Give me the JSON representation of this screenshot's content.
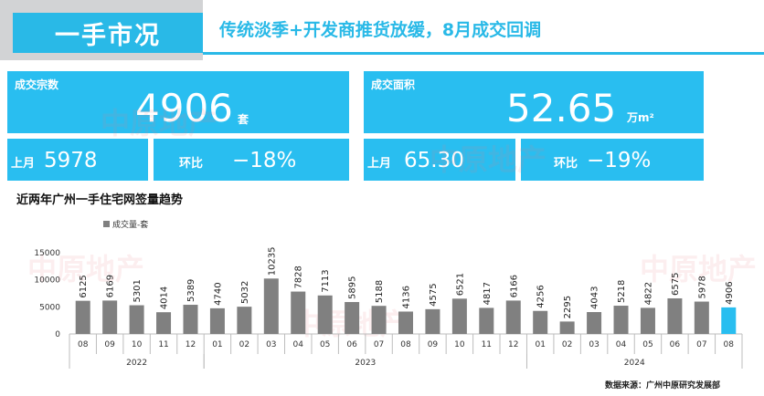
{
  "header": {
    "tab_label": "一手市况",
    "title": "传统淡季+开发商推货放缓，8月成交回调"
  },
  "kpi_units": {
    "label": "成交宗数",
    "value": "4906",
    "unit": "套",
    "last_label": "上月",
    "last_value": "5978",
    "mom_label": "环比",
    "mom_value": "−18%"
  },
  "kpi_area": {
    "label": "成交面积",
    "value": "52.65",
    "unit": "万m²",
    "last_label": "上月",
    "last_value": "65.30",
    "mom_label": "环比",
    "mom_value": "−19%"
  },
  "section_title": "近两年广州一手住宅网签量趋势",
  "source": "数据来源：广州中原研究发展部",
  "watermark": "中原地产",
  "colors": {
    "accent": "#29bef0",
    "bar": "#808080",
    "bar_highlight": "#29bef0"
  },
  "chart_data": {
    "type": "bar",
    "series": [
      {
        "name": "成交量-套",
        "values": [
          6125,
          6169,
          5301,
          4014,
          5389,
          4740,
          5032,
          10235,
          7828,
          7113,
          5895,
          5188,
          4136,
          4575,
          6521,
          4817,
          6166,
          4256,
          2295,
          4043,
          5218,
          4822,
          6575,
          5978,
          4906
        ]
      }
    ],
    "categories": [
      "08",
      "09",
      "10",
      "11",
      "12",
      "01",
      "02",
      "03",
      "04",
      "05",
      "06",
      "07",
      "08",
      "09",
      "10",
      "11",
      "12",
      "01",
      "02",
      "03",
      "04",
      "05",
      "06",
      "07",
      "08"
    ],
    "years": [
      {
        "label": "2022",
        "start": 0,
        "end": 4
      },
      {
        "label": "2023",
        "start": 5,
        "end": 16
      },
      {
        "label": "2024",
        "start": 17,
        "end": 24
      }
    ],
    "highlight_index": 24,
    "ylim": [
      0,
      15000
    ],
    "yticks": [
      0,
      5000,
      10000,
      15000
    ],
    "grid": false,
    "legend": "top-left",
    "xlabel": "",
    "ylabel": ""
  }
}
